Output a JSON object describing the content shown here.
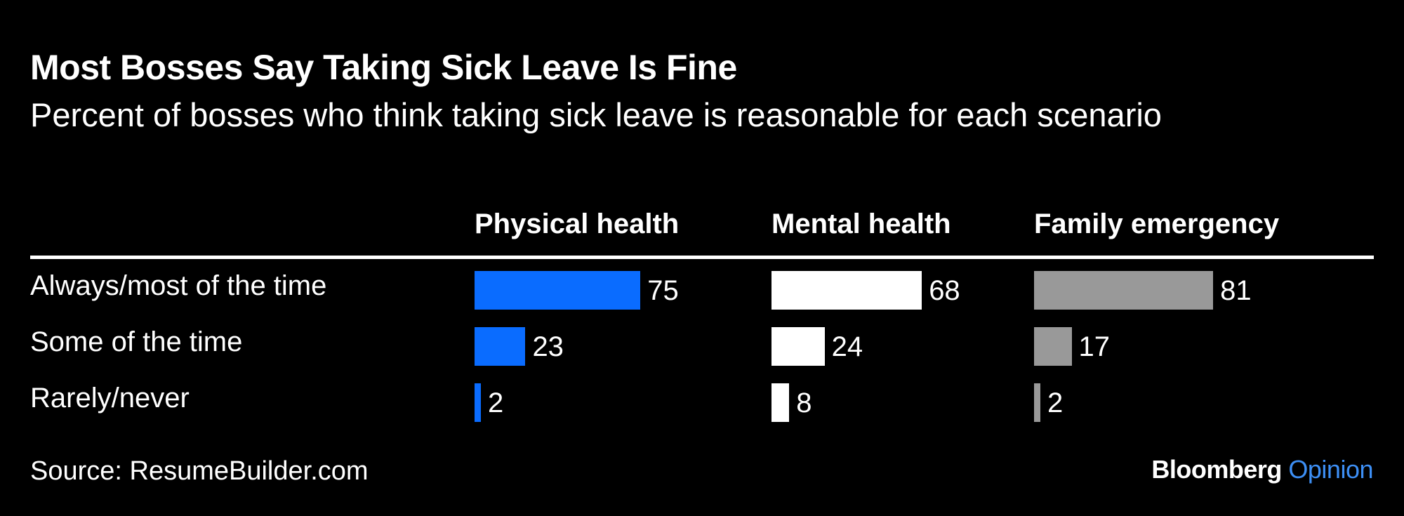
{
  "title": "Most Bosses Say Taking Sick Leave Is Fine",
  "subtitle": "Percent of bosses who think taking sick leave is reasonable for each scenario",
  "source": "Source: ResumeBuilder.com",
  "brand": {
    "name": "Bloomberg",
    "section": "Opinion"
  },
  "colors": {
    "background": "#000000",
    "physical": "#0a6cff",
    "mental": "#ffffff",
    "family": "#999999",
    "brand_accent": "#3d8ff5"
  },
  "chart_data": {
    "type": "bar",
    "orientation": "horizontal",
    "title": "Most Bosses Say Taking Sick Leave Is Fine",
    "subtitle": "Percent of bosses who think taking sick leave is reasonable for each scenario",
    "categories": [
      "Always/most of the time",
      "Some of the time",
      "Rarely/never"
    ],
    "series": [
      {
        "name": "Physical health",
        "values": [
          75,
          23,
          2
        ],
        "color": "#0a6cff"
      },
      {
        "name": "Mental health",
        "values": [
          68,
          24,
          8
        ],
        "color": "#ffffff"
      },
      {
        "name": "Family emergency",
        "values": [
          81,
          17,
          2
        ],
        "color": "#999999"
      }
    ],
    "xlim": [
      0,
      100
    ],
    "grid": false,
    "legend": "column headers"
  }
}
